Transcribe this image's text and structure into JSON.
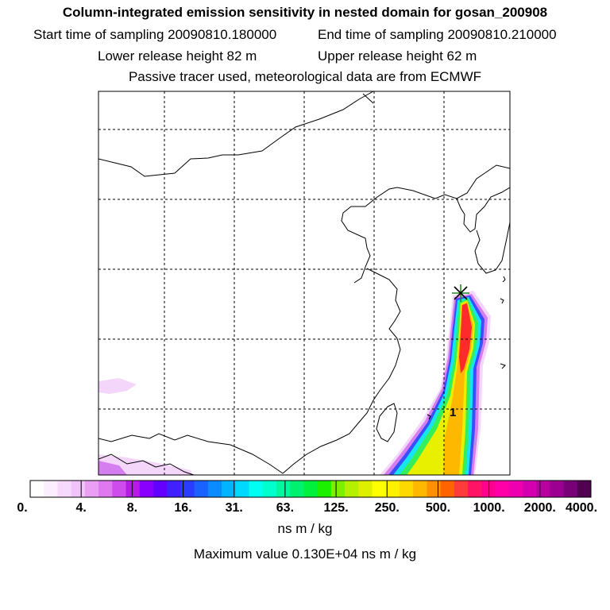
{
  "header": {
    "title": "Column-integrated emission sensitivity in nested domain for gosan_200908",
    "start_label": "Start time of sampling 20090810.180000",
    "end_label": "End time of sampling 20090810.210000",
    "lower_label": "Lower release height   82 m",
    "upper_label": "Upper release height   62 m",
    "tracer_label": "Passive tracer used, meteorological data are from ECMWF"
  },
  "map": {
    "release_marker_label": "1",
    "plume_colors": {
      "faint": "#f4d6fb",
      "violet": "#d47ef0",
      "blue": "#3a4dff",
      "cyan": "#15e5f0",
      "green": "#35ee5a",
      "yellow": "#e8f000",
      "orange": "#ffb800",
      "red": "#ff2a2a"
    },
    "station_marker_color": "#228b22"
  },
  "colorbar": {
    "ticks": [
      "0.",
      "4.",
      "8.",
      "16.",
      "31.",
      "63.",
      "125.",
      "250.",
      "500.",
      "1000.",
      "2000.",
      "4000."
    ],
    "colors": [
      "#ffffff",
      "#fbeefe",
      "#f6d9fc",
      "#f0c4fa",
      "#ea9ff5",
      "#de79f0",
      "#cf4cec",
      "#b619e8",
      "#8a00ff",
      "#6400ff",
      "#4020ff",
      "#2a3cff",
      "#1a62ff",
      "#0a8cff",
      "#00b4ff",
      "#00d8ff",
      "#00fff0",
      "#00ffcc",
      "#00f7a0",
      "#00f070",
      "#00f040",
      "#1af000",
      "#7cf000",
      "#b4f000",
      "#dcf000",
      "#ffff00",
      "#fff000",
      "#ffd800",
      "#ffb800",
      "#ff9000",
      "#ff6400",
      "#ff3c3c",
      "#ff1464",
      "#ff0090",
      "#ff00a8",
      "#ee00b0",
      "#d400b0",
      "#b800a0",
      "#9c0090",
      "#7a0078",
      "#520050"
    ],
    "units": "ns m / kg",
    "max_value": "Maximum value  0.130E+04 ns m / kg"
  }
}
